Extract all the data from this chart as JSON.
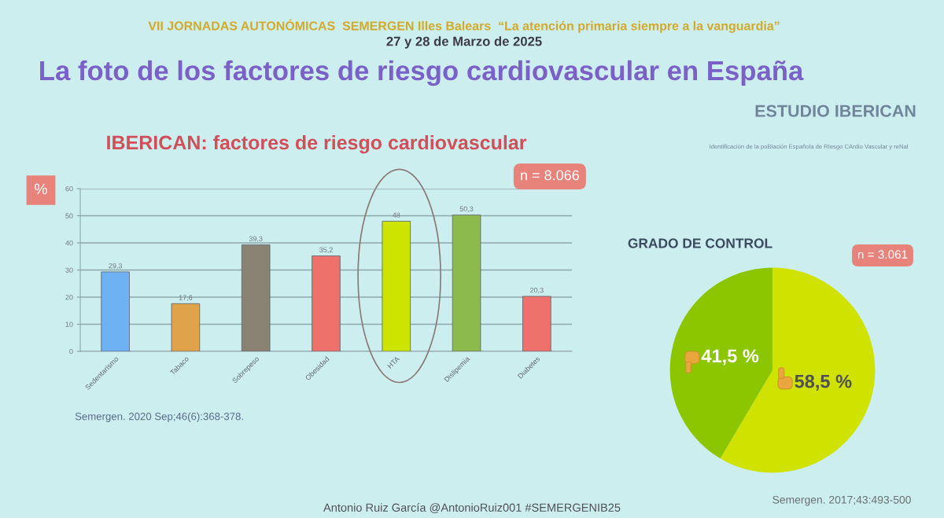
{
  "chart_data": [
    {
      "type": "other",
      "title": "La foto de los factores de riesgo cardiovascular en España",
      "annotations": [
        "VII JORNADAS AUTONÓMICAS  SEMERGEN Illes Balears  “La atención primaria siempre a la vanguardia”",
        "27 y 28 de Marzo de 2025",
        "ESTUDIO IBERICAN",
        "Identificación de la poBlación Española de RIesgo CArdio Vascular y reNal",
        "Antonio Ruiz García @AntonioRuiz001 #SEMERGENIB25"
      ]
    },
    {
      "type": "bar",
      "title": "IBERICAN: factores de riesgo cardiovascular",
      "ylabel": "%",
      "categories": [
        "Sedentarismo",
        "Tabaco",
        "Sobrepeso",
        "Obesidad",
        "HTA",
        "Dislipemia",
        "Diabetes"
      ],
      "values": [
        29.3,
        17.6,
        39.3,
        35.2,
        48,
        50.3,
        20.3
      ],
      "colors": [
        "#6eb2f4",
        "#e0a24a",
        "#8a8272",
        "#ee716c",
        "#cde300",
        "#8cba4c",
        "#ee716c"
      ],
      "value_labels": [
        "29,3",
        "17,6",
        "39,3",
        "35,2",
        "48",
        "50,3",
        "20,3"
      ],
      "ylim": [
        0,
        60
      ],
      "yticks": [
        0,
        10,
        20,
        30,
        40,
        50,
        60
      ],
      "grid": "y",
      "annotations": [
        "n = 8.066",
        "Semergen. 2020 Sep;46(6):368-378."
      ]
    },
    {
      "type": "pie",
      "title": "GRADO DE CONTROL",
      "categories": [
        null,
        null
      ],
      "values": [
        58.5,
        41.5
      ],
      "colors": [
        "#cfe200",
        "#8cc600"
      ],
      "value_labels": [
        "58,5 %",
        "41,5 %"
      ],
      "annotations": [
        "n = 3.061",
        "Semergen. 2017;43:493-500"
      ]
    }
  ]
}
